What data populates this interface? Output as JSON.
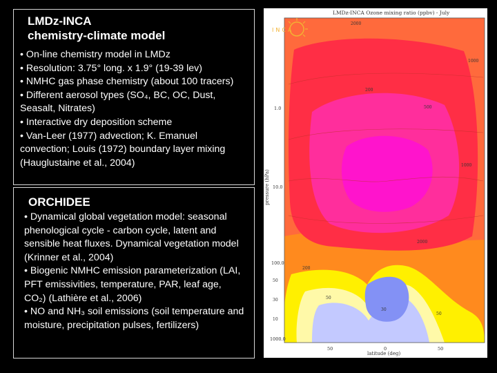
{
  "inca": {
    "title_line1": "LMDz-INCA",
    "title_line2": "chemistry-climate model",
    "bullets": [
      "• On-line chemistry model in LMDz",
      "• Resolution: 3.75° long. x 1.9° (19-39 lev)",
      "• NMHC gas phase chemistry (about 100 tracers)",
      "• Different aerosol types (SO₄, BC, OC, Dust, Seasalt, Nitrates)",
      "• Interactive dry deposition scheme",
      "• Van-Leer (1977) advection; K. Emanuel convection; Louis (1972) boundary layer mixing (Hauglustaine et al., 2004)"
    ]
  },
  "orchidee": {
    "title": "ORCHIDEE",
    "bullets": [
      "• Dynamical global vegetation model: seasonal phenological cycle - carbon cycle, latent and sensible heat fluxes. Dynamical vegetation model (Krinner et al., 2004)",
      "• Biogenic NMHC emission parameterization (LAI, PFT emissivities, temperature, PAR, leaf age, CO₂) (Lathière et al., 2006)",
      "• NO and NH₃ soil emissions (soil temperature and moisture, precipitation pulses, fertilizers)"
    ]
  },
  "figure": {
    "title": "LMDz-INCA Ozone mixing ratio (ppbv) - July",
    "logo_text": "INCA",
    "ylabel": "pressure (hPa)",
    "xlabel": "latitude (deg)",
    "y_ticks": [
      "1.0",
      "10.0",
      "100.0",
      "1000.0"
    ],
    "y_minor_ticks": [
      "50",
      "30",
      "10"
    ],
    "x_ticks": [
      "50",
      "0",
      "50"
    ],
    "contour_labels": [
      "2000",
      "1000",
      "200",
      "500",
      "1000",
      "200",
      "2000",
      "50",
      "30",
      "50"
    ],
    "colors": {
      "outer": "#ff6a3c",
      "orange": "#ff8a1e",
      "red": "#ff2e45",
      "pink": "#ff2e9c",
      "magenta": "#ff14cc",
      "yellow": "#fff000",
      "pale_yellow": "#fff9a8",
      "white": "#ffffff",
      "light_blue": "#c3c9ff",
      "blue": "#8391f5"
    }
  }
}
